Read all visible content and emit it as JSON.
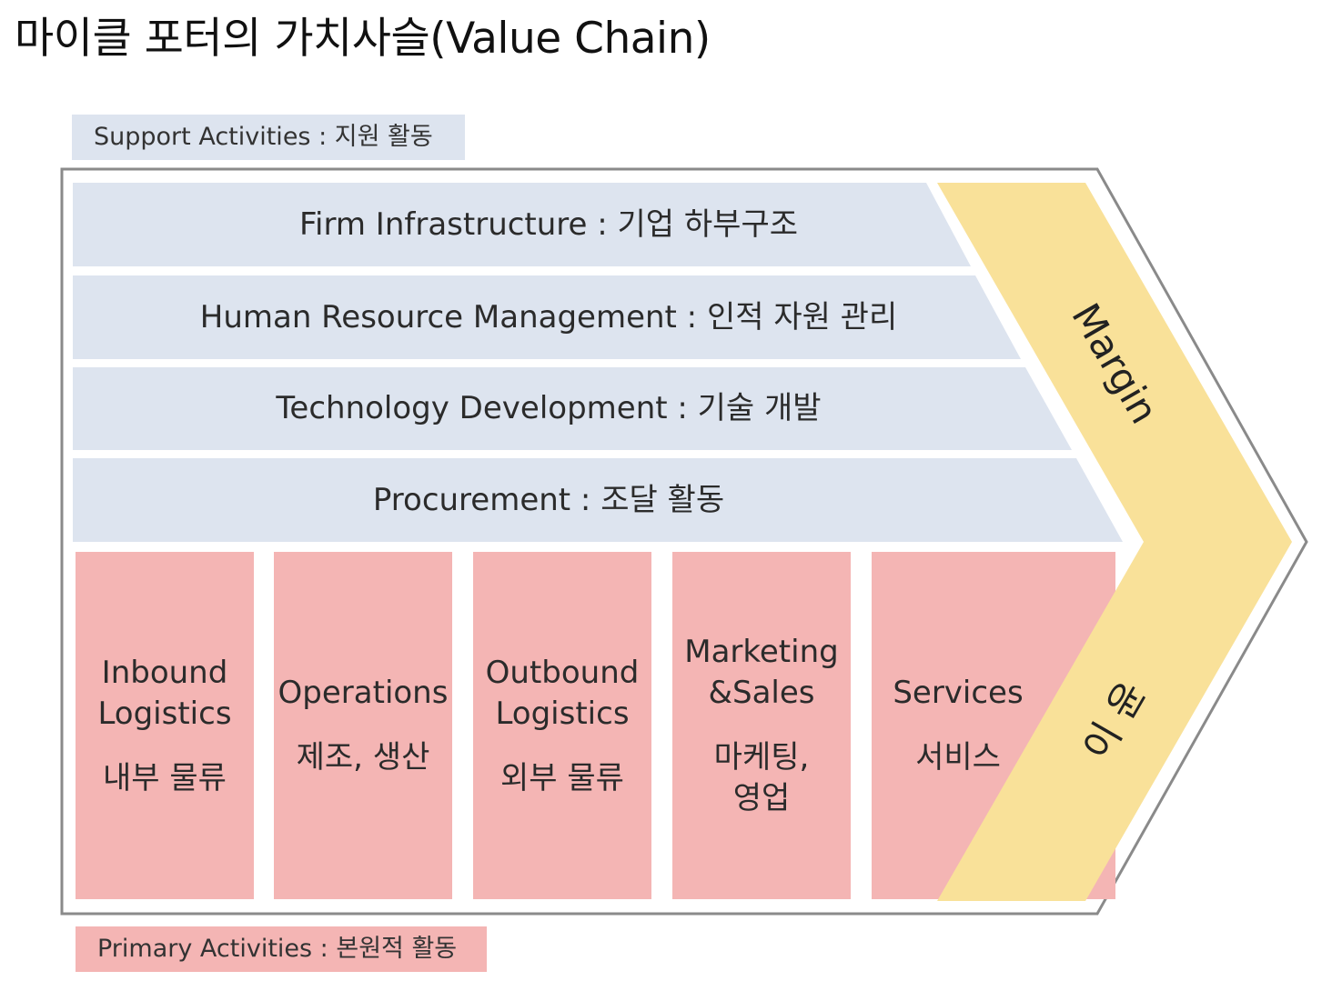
{
  "title": "마이클 포터의 가치사슬(Value Chain)",
  "support_tag": "Support Activities : 지원 활동",
  "primary_tag": "Primary Activities : 본원적 활동",
  "support_activities": [
    "Firm Infrastructure : 기업 하부구조",
    "Human Resource Management : 인적 자원 관리",
    "Technology Development : 기술 개발",
    "Procurement : 조달 활동"
  ],
  "primary_activities": [
    {
      "en": "Inbound\nLogistics",
      "ko": "내부 물류"
    },
    {
      "en": "Operations",
      "ko": "제조, 생산"
    },
    {
      "en": "Outbound\nLogistics",
      "ko": "외부 물류"
    },
    {
      "en": "Marketing\n&Sales",
      "ko": "마케팅,\n영업"
    },
    {
      "en": "Services",
      "ko": "서비스"
    }
  ],
  "margin": {
    "en": "Margin",
    "ko": "이 윤"
  },
  "colors": {
    "support": "#dde4ef",
    "primary": "#f4b5b4",
    "margin": "#f9e199",
    "outline": "#8a8a8a"
  }
}
